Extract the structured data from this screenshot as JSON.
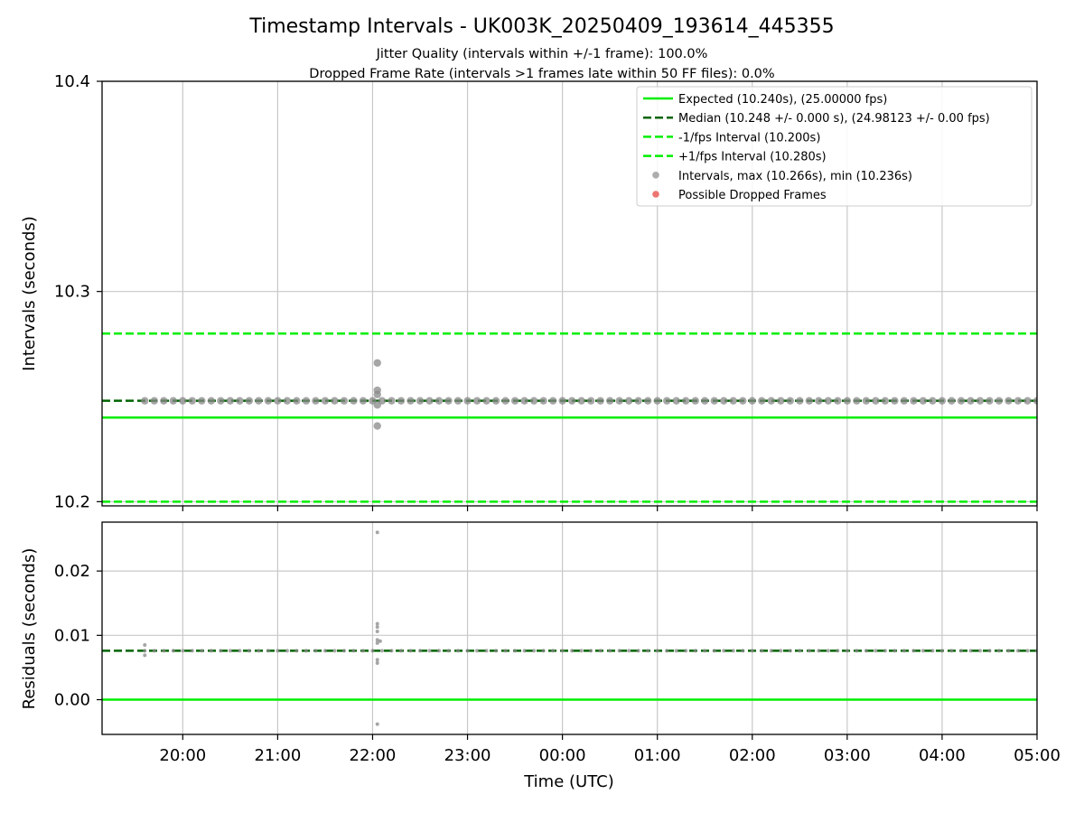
{
  "chart_data": [
    {
      "type": "scatter",
      "panel": "intervals",
      "title": "Timestamp Intervals - UK003K_20250409_193614_445355",
      "subtitle_lines": [
        "Jitter Quality (intervals within +/-1 frame): 100.0%",
        "Dropped Frame Rate (intervals >1 frames late within 50 FF files): 0.0%"
      ],
      "xlabel": "",
      "ylabel": "Intervals (seconds)",
      "ylim": [
        10.198,
        10.4
      ],
      "yticks": [
        10.2,
        10.3,
        10.4
      ],
      "ytick_labels": [
        "10.2",
        "10.3",
        "10.4"
      ],
      "grid": true,
      "legend_position": "upper-right",
      "reference_lines": [
        {
          "label": "Expected (10.240s), (25.00000 fps)",
          "y": 10.24,
          "color": "#00ee00",
          "style": "solid"
        },
        {
          "label": "Median (10.248 +/- 0.000 s), (24.98123 +/- 0.00 fps)",
          "y": 10.248,
          "color": "#006400",
          "style": "dashed"
        },
        {
          "label": "-1/fps Interval (10.200s)",
          "y": 10.2,
          "color": "#00ee00",
          "style": "dashed"
        },
        {
          "label": "+1/fps Interval (10.280s)",
          "y": 10.28,
          "color": "#00ee00",
          "style": "dashed"
        }
      ],
      "scatter_series": [
        {
          "label": "Intervals, max (10.266s), min (10.236s)",
          "color": "#999999"
        },
        {
          "label": "Possible Dropped Frames",
          "color": "#e8534f"
        }
      ],
      "outlier_points": [
        {
          "x": 22.05,
          "y": 10.266
        },
        {
          "x": 22.05,
          "y": 10.253
        },
        {
          "x": 22.05,
          "y": 10.251
        },
        {
          "x": 22.05,
          "y": 10.246
        },
        {
          "x": 22.05,
          "y": 10.236
        }
      ]
    },
    {
      "type": "scatter",
      "panel": "residuals",
      "xlabel": "Time (UTC)",
      "ylabel": "Residuals (seconds)",
      "ylim": [
        -0.0054,
        0.0276
      ],
      "yticks": [
        0.0,
        0.01,
        0.02
      ],
      "ytick_labels": [
        "0.00",
        "0.01",
        "0.02"
      ],
      "grid": true,
      "reference_lines": [
        {
          "y": 0.0,
          "color": "#00ee00",
          "style": "solid"
        },
        {
          "y": 0.0076,
          "color": "#006400",
          "style": "dashed"
        }
      ],
      "outlier_points": [
        {
          "x": 22.05,
          "y": 0.026
        },
        {
          "x": 22.05,
          "y": 0.0118
        },
        {
          "x": 22.05,
          "y": 0.0113
        },
        {
          "x": 22.05,
          "y": 0.0106
        },
        {
          "x": 22.05,
          "y": 0.0093
        },
        {
          "x": 22.08,
          "y": 0.0091
        },
        {
          "x": 22.05,
          "y": 0.0088
        },
        {
          "x": 22.05,
          "y": 0.0062
        },
        {
          "x": 22.05,
          "y": 0.0057
        },
        {
          "x": 22.05,
          "y": -0.0038
        },
        {
          "x": 19.6,
          "y": 0.0085
        },
        {
          "x": 19.6,
          "y": 0.0069
        }
      ]
    }
  ],
  "x_axis": {
    "unit": "hours since 19:00 on 2025-04-09 (values above 24 are after midnight)",
    "range": [
      19.15,
      29.0
    ],
    "ticks": [
      20,
      21,
      22,
      23,
      24,
      25,
      26,
      27,
      28,
      29
    ],
    "tick_labels": [
      "20:00",
      "21:00",
      "22:00",
      "23:00",
      "00:00",
      "01:00",
      "02:00",
      "03:00",
      "04:00",
      "05:00"
    ]
  },
  "interval_series": {
    "x_start": 19.6,
    "x_end": 29.0,
    "typical_interval": 10.248,
    "typical_residual": 0.0076
  }
}
